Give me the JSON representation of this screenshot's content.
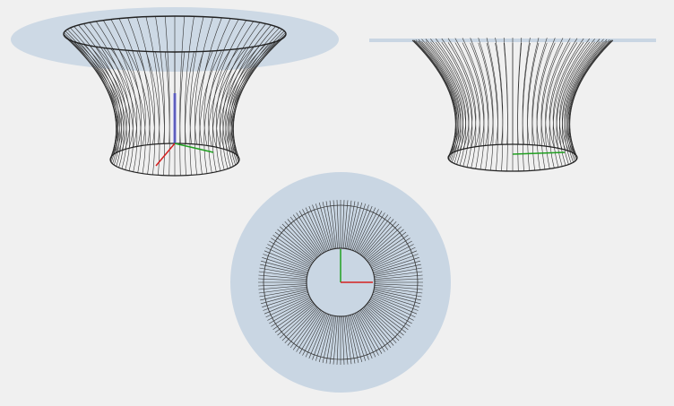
{
  "scene": {
    "views": [
      {
        "name": "perspective",
        "projection": "perspective"
      },
      {
        "name": "front",
        "projection": "orthographic-side"
      },
      {
        "name": "top",
        "projection": "orthographic-top"
      }
    ],
    "object": "wire-base-table-with-glass-top",
    "colors": {
      "background": "#f0f0f0",
      "glass": "#c9d6e3",
      "glass_edge": "#b8c6d4",
      "wire": "#333333",
      "axis_x": "#d42020",
      "axis_y": "#20a020",
      "axis_z": "#3030d0"
    },
    "wire_count": 72
  }
}
